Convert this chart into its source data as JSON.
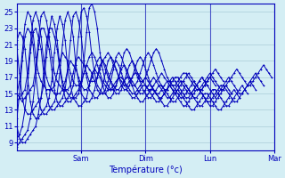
{
  "xlabel": "Température (°c)",
  "bg_color": "#d4eef4",
  "grid_color": "#aaccd8",
  "line_color": "#0000bb",
  "xlim": [
    0,
    96
  ],
  "ylim": [
    8,
    26
  ],
  "yticks": [
    9,
    11,
    13,
    15,
    17,
    19,
    21,
    23,
    25
  ],
  "day_labels": [
    [
      "Sam",
      24
    ],
    [
      "Dim",
      48
    ],
    [
      "Lun",
      72
    ],
    [
      "Mar",
      96
    ]
  ],
  "series": [
    [
      17.0,
      15.0,
      14.0,
      13.0,
      12.0,
      11.0,
      10.5,
      10.0,
      10.5,
      12.0,
      15.0,
      19.0,
      22.0,
      23.0,
      22.5,
      21.0,
      18.0,
      15.5,
      14.0,
      13.5,
      13.5,
      14.0,
      14.5,
      14.5,
      15.0,
      16.5,
      20.0,
      23.5,
      25.0,
      24.5,
      22.5,
      19.5,
      17.5,
      16.5,
      16.0,
      15.5,
      15.5,
      15.5,
      16.0,
      17.5,
      19.0,
      20.0,
      19.5,
      19.0,
      17.5,
      16.5,
      16.0,
      16.0,
      16.5,
      17.5,
      18.5,
      19.5,
      20.0,
      19.5,
      18.5,
      17.5,
      16.5,
      16.0,
      15.5,
      15.5,
      16.0,
      16.5,
      17.0,
      17.0,
      16.5,
      16.0,
      15.5,
      15.0,
      15.0,
      15.5,
      16.0,
      16.5,
      17.0,
      16.5,
      16.0,
      15.5,
      15.0,
      14.5,
      14.5,
      15.0,
      15.5,
      16.5,
      17.0,
      16.5,
      16.0,
      15.5,
      15.0,
      14.5,
      14.5,
      15.0,
      15.5,
      16.0,
      16.5,
      17.0,
      16.5,
      16.0
    ],
    [
      17.0,
      15.5,
      14.5,
      13.5,
      12.5,
      11.5,
      11.0,
      10.5,
      11.0,
      12.5,
      15.5,
      19.5,
      22.5,
      23.0,
      22.5,
      21.0,
      18.5,
      16.0,
      14.5,
      14.0,
      13.5,
      14.0,
      14.5,
      15.0,
      15.5,
      17.5,
      21.0,
      24.0,
      25.0,
      24.0,
      22.0,
      19.0,
      17.0,
      16.0,
      15.5,
      15.0,
      15.0,
      15.0,
      15.5,
      16.5,
      18.0,
      19.0,
      18.5,
      18.0,
      17.0,
      16.0,
      15.5,
      15.5,
      16.0,
      17.0,
      18.0,
      19.0,
      19.5,
      19.0,
      18.0,
      17.0,
      16.5,
      16.0,
      15.5,
      15.5,
      16.0,
      16.5,
      17.0,
      17.0,
      16.5,
      16.0,
      15.5,
      15.0,
      15.0,
      15.5,
      16.0,
      16.5,
      17.0,
      16.5,
      16.0,
      15.5,
      15.0,
      14.5,
      14.5,
      15.0,
      15.5,
      16.0,
      16.5,
      16.5,
      16.0,
      15.5,
      15.0,
      14.5,
      14.5,
      15.0,
      15.5,
      16.0,
      16.5,
      17.0,
      16.5,
      16.0
    ],
    [
      17.5,
      16.0,
      15.0,
      14.0,
      13.0,
      12.0,
      11.5,
      11.0,
      11.5,
      13.0,
      16.0,
      20.0,
      22.5,
      23.0,
      22.5,
      21.0,
      18.5,
      16.5,
      15.0,
      14.5,
      14.0,
      14.5,
      15.0,
      15.5,
      16.0,
      18.0,
      21.5,
      24.5,
      25.0,
      24.0,
      22.0,
      19.5,
      17.5,
      16.5,
      16.0,
      15.5,
      15.5,
      15.5,
      16.0,
      17.5,
      19.0,
      19.5,
      19.0,
      18.5,
      17.5,
      16.5,
      16.5,
      16.5,
      17.0,
      18.0,
      19.0,
      19.5,
      20.0,
      19.5,
      18.5,
      18.0,
      17.0,
      16.5,
      16.0,
      16.0,
      16.5,
      17.0,
      17.5,
      17.5,
      17.0,
      16.5,
      16.0,
      15.5,
      15.5,
      16.0,
      16.5,
      17.0,
      17.5,
      17.0,
      16.5,
      16.0,
      15.5,
      15.0,
      15.5,
      16.0,
      16.5,
      17.0,
      17.5,
      17.0,
      16.5,
      16.0,
      15.5,
      15.5,
      16.0,
      16.5,
      17.0,
      17.5,
      18.0,
      17.5,
      17.0,
      16.5
    ],
    [
      15.5,
      14.0,
      12.5,
      11.0,
      10.0,
      9.0,
      8.5,
      8.5,
      9.5,
      11.5,
      14.5,
      18.5,
      21.5,
      22.5,
      22.0,
      20.5,
      17.5,
      14.5,
      13.0,
      12.5,
      12.5,
      13.0,
      13.5,
      14.0,
      14.5,
      16.0,
      19.5,
      22.5,
      24.5,
      23.5,
      21.5,
      18.5,
      16.5,
      15.5,
      15.0,
      14.5,
      14.5,
      14.5,
      15.0,
      16.0,
      17.5,
      18.5,
      18.0,
      17.5,
      16.5,
      15.5,
      15.0,
      15.0,
      15.5,
      16.5,
      17.5,
      18.5,
      19.0,
      18.5,
      17.5,
      16.5,
      15.5,
      15.0,
      14.5,
      14.5,
      15.0,
      15.5,
      16.0,
      16.0,
      15.5,
      15.0,
      14.5,
      14.0,
      14.0,
      14.5,
      15.0,
      15.5,
      16.0,
      15.5,
      15.0,
      14.5,
      14.0,
      13.5,
      13.5,
      14.0,
      14.5,
      15.0,
      15.5,
      15.5,
      15.0,
      14.5,
      14.0,
      13.5,
      13.5,
      14.0,
      14.5,
      15.0,
      15.5,
      16.0,
      15.5,
      15.0
    ],
    [
      14.5,
      12.5,
      11.0,
      9.5,
      9.0,
      8.5,
      8.5,
      8.5,
      9.5,
      11.5,
      14.5,
      18.5,
      21.5,
      22.5,
      22.0,
      20.5,
      17.0,
      14.0,
      12.5,
      12.0,
      12.0,
      12.5,
      13.0,
      13.5,
      14.5,
      16.5,
      20.0,
      23.0,
      24.5,
      23.5,
      21.5,
      18.0,
      16.0,
      14.5,
      14.0,
      13.5,
      13.5,
      14.0,
      14.5,
      16.0,
      17.5,
      18.0,
      17.5,
      17.0,
      16.0,
      15.0,
      14.5,
      14.5,
      15.0,
      16.0,
      17.0,
      18.0,
      18.5,
      18.0,
      17.0,
      16.0,
      15.0,
      14.5,
      14.0,
      14.0,
      14.5,
      15.0,
      15.5,
      15.5,
      15.0,
      14.5,
      14.0,
      13.5,
      13.5,
      14.0,
      14.5,
      15.0,
      15.5,
      15.0,
      14.5,
      14.0,
      13.5,
      13.0,
      13.0,
      13.5,
      14.0,
      14.5,
      15.0,
      15.0,
      14.5,
      14.0,
      13.5,
      13.0,
      13.0,
      13.5,
      14.0,
      14.5,
      15.0,
      15.5,
      15.0,
      14.5
    ],
    [
      13.5,
      11.5,
      10.0,
      9.0,
      8.5,
      8.5,
      8.5,
      9.0,
      10.0,
      12.0,
      15.0,
      19.0,
      22.0,
      23.0,
      22.5,
      21.0,
      17.5,
      14.5,
      13.0,
      12.5,
      12.5,
      13.0,
      13.5,
      14.0,
      15.0,
      17.5,
      21.0,
      24.0,
      25.0,
      24.0,
      22.0,
      18.5,
      16.5,
      15.0,
      14.5,
      14.0,
      14.0,
      14.5,
      15.5,
      17.0,
      18.5,
      19.0,
      18.5,
      17.5,
      16.5,
      15.5,
      15.0,
      15.0,
      15.5,
      16.5,
      17.5,
      18.5,
      19.0,
      18.5,
      17.5,
      16.5,
      15.5,
      15.0,
      14.5,
      14.5,
      15.0,
      15.5,
      16.0,
      16.0,
      15.5,
      15.0,
      14.5,
      14.0,
      14.0,
      14.5,
      15.0,
      15.5,
      16.0,
      15.5,
      15.0,
      14.5,
      14.0,
      13.5,
      13.5,
      14.0,
      14.5,
      15.0,
      15.5,
      15.5,
      15.0,
      14.5,
      14.0,
      13.5,
      13.5,
      14.0,
      14.5,
      15.0,
      15.5,
      16.0,
      15.5,
      15.0
    ],
    [
      12.5,
      11.0,
      9.5,
      9.0,
      8.5,
      9.0,
      9.5,
      10.0,
      11.0,
      13.0,
      16.0,
      20.0,
      22.5,
      23.0,
      22.0,
      20.5,
      17.5,
      15.0,
      13.5,
      13.0,
      13.0,
      13.5,
      14.0,
      14.5,
      15.5,
      18.0,
      21.5,
      24.5,
      25.0,
      24.0,
      22.0,
      19.0,
      17.0,
      15.5,
      15.0,
      14.5,
      14.5,
      15.0,
      16.0,
      17.5,
      19.0,
      19.5,
      19.0,
      18.0,
      17.0,
      16.0,
      15.5,
      15.5,
      16.0,
      17.0,
      18.0,
      19.0,
      19.5,
      19.0,
      18.0,
      17.0,
      16.0,
      15.5,
      15.0,
      15.0,
      15.5,
      16.0,
      16.5,
      16.5,
      16.0,
      15.5,
      15.0,
      14.5,
      14.5,
      15.0,
      15.5,
      16.0,
      16.5,
      16.0,
      15.5,
      15.0,
      14.5,
      14.0,
      14.0,
      14.5,
      15.0,
      15.5,
      16.0,
      16.0,
      15.5,
      15.0,
      14.5,
      14.0,
      14.0,
      14.5,
      15.0,
      15.5,
      16.0,
      16.5,
      16.0,
      15.5
    ],
    [
      11.5,
      10.0,
      9.0,
      8.5,
      9.0,
      9.5,
      10.0,
      10.5,
      12.0,
      14.0,
      17.0,
      20.5,
      23.0,
      23.0,
      22.0,
      20.5,
      18.0,
      15.5,
      14.0,
      13.5,
      13.5,
      14.0,
      14.5,
      15.0,
      16.0,
      18.5,
      22.0,
      25.0,
      25.5,
      24.5,
      22.5,
      19.5,
      17.5,
      16.0,
      15.5,
      15.0,
      15.0,
      15.5,
      16.5,
      18.0,
      19.5,
      20.0,
      19.5,
      18.5,
      17.5,
      16.5,
      16.0,
      16.0,
      16.5,
      17.5,
      18.5,
      19.5,
      20.0,
      19.5,
      18.5,
      17.5,
      16.5,
      16.0,
      15.5,
      15.5,
      16.0,
      16.5,
      17.0,
      17.0,
      16.5,
      16.0,
      15.5,
      15.0,
      15.0,
      15.5,
      16.0,
      16.5,
      17.0,
      16.5,
      16.0,
      15.5,
      15.0,
      14.5,
      15.0,
      15.5,
      16.0,
      16.5,
      17.0,
      16.5,
      16.0,
      15.5,
      15.0,
      15.0,
      15.5,
      16.0,
      16.5,
      17.0,
      17.5,
      17.0,
      16.5,
      16.0
    ],
    [
      11.0,
      9.5,
      9.0,
      9.0,
      9.5,
      10.0,
      10.5,
      11.0,
      12.5,
      14.5,
      17.5,
      21.0,
      23.0,
      23.0,
      22.0,
      20.5,
      18.0,
      16.0,
      14.5,
      14.0,
      14.0,
      14.5,
      15.0,
      15.5,
      16.5,
      19.0,
      22.5,
      25.5,
      26.0,
      25.0,
      23.0,
      20.0,
      18.0,
      16.5,
      16.0,
      15.5,
      15.5,
      16.0,
      17.0,
      18.5,
      20.0,
      20.5,
      20.0,
      19.0,
      18.0,
      17.0,
      16.5,
      16.5,
      17.0,
      18.0,
      19.0,
      20.0,
      20.5,
      20.0,
      19.0,
      18.0,
      17.0,
      16.5,
      16.0,
      16.0,
      16.5,
      17.0,
      17.5,
      17.5,
      17.0,
      16.5,
      16.0,
      15.5,
      15.5,
      16.0,
      16.5,
      17.0,
      17.5,
      17.0,
      16.5,
      16.0,
      15.5,
      15.5,
      16.0,
      16.5,
      17.0,
      17.5,
      18.0,
      17.5,
      17.0,
      16.5,
      16.0,
      16.0,
      16.5,
      17.0,
      17.5,
      18.0,
      18.5,
      18.0,
      17.5,
      17.0
    ]
  ]
}
